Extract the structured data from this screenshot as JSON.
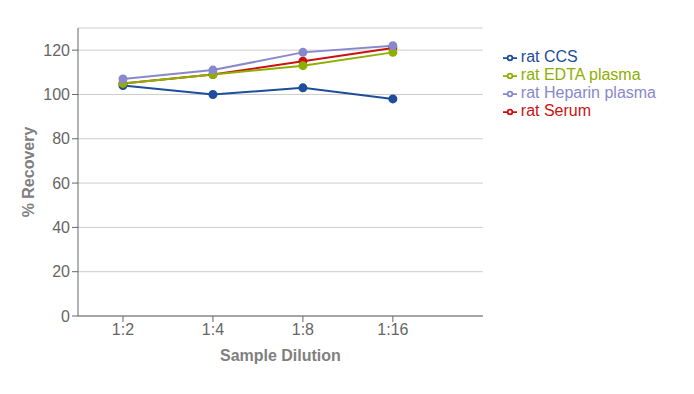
{
  "chart_data": {
    "type": "line",
    "x": [
      1,
      2,
      3,
      4
    ],
    "xlabel": "Sample Dilution",
    "ylabel": "% Recovery",
    "xlim": [
      0.5,
      5.0
    ],
    "xticks": [
      {
        "value": 1,
        "label": "1:2"
      },
      {
        "value": 2,
        "label": "1:4"
      },
      {
        "value": 3,
        "label": "1:8"
      },
      {
        "value": 4,
        "label": "1:16"
      }
    ],
    "ylim": [
      0,
      130
    ],
    "yticks": [
      0,
      20,
      40,
      60,
      80,
      100,
      120
    ],
    "grid": true,
    "legend": "right",
    "marker": "circle",
    "series": [
      {
        "name": "rat CCS",
        "color": "#1e4d9b",
        "values": [
          104,
          100,
          103,
          98
        ]
      },
      {
        "name": "rat Serum",
        "color": "#cc1111",
        "values": [
          105,
          109,
          115,
          121
        ]
      },
      {
        "name": "rat EDTA plasma",
        "color": "#8db000",
        "values": [
          105,
          109,
          113,
          119
        ]
      },
      {
        "name": "rat Heparin plasma",
        "color": "#8888cc",
        "values": [
          107,
          111,
          119,
          122
        ]
      }
    ]
  }
}
